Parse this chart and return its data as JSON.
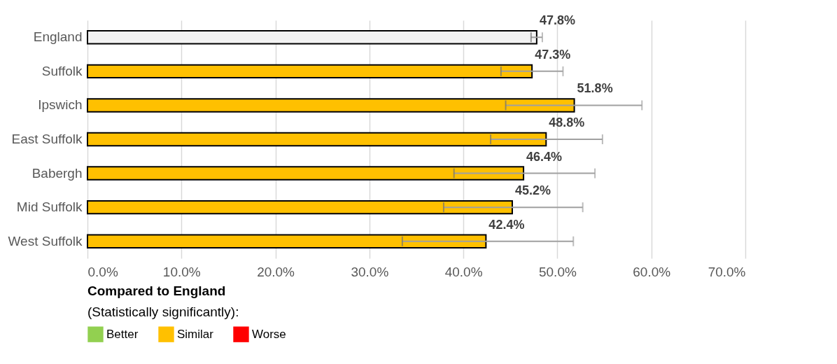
{
  "chart_data": {
    "type": "bar",
    "orientation": "horizontal",
    "categories": [
      "England",
      "Suffolk",
      "Ipswich",
      "East Suffolk",
      "Babergh",
      "Mid Suffolk",
      "West Suffolk"
    ],
    "series": [
      {
        "color": "#f2f2f2",
        "values": [
          47.8,
          null,
          null,
          null,
          null,
          null,
          null
        ],
        "errors": [
          [
            47.2,
            48.4
          ],
          null,
          null,
          null,
          null,
          null,
          null
        ],
        "value_labels": [
          "47.8%",
          null,
          null,
          null,
          null,
          null,
          null
        ]
      },
      {
        "name": "Better",
        "color": "#92d050",
        "values": [
          null,
          null,
          null,
          null,
          null,
          null,
          null
        ]
      },
      {
        "name": "Similar",
        "color": "#ffc000",
        "values": [
          null,
          47.3,
          51.8,
          48.8,
          46.4,
          45.2,
          42.4
        ],
        "errors": [
          null,
          [
            44.0,
            50.6
          ],
          [
            44.5,
            59.0
          ],
          [
            42.9,
            54.8
          ],
          [
            39.0,
            54.0
          ],
          [
            37.9,
            52.7
          ],
          [
            33.5,
            51.7
          ]
        ],
        "value_labels": [
          null,
          "47.3%",
          "51.8%",
          "48.8%",
          "46.4%",
          "45.2%",
          "42.4%"
        ]
      },
      {
        "name": "Worse",
        "color": "#ff0000",
        "values": [
          null,
          null,
          null,
          null,
          null,
          null,
          null
        ]
      }
    ],
    "xlim": [
      0,
      70
    ],
    "xticks": [
      {
        "value": 0,
        "label": "0.0%"
      },
      {
        "value": 10,
        "label": "10.0%"
      },
      {
        "value": 20,
        "label": "20.0%"
      },
      {
        "value": 30,
        "label": "30.0%"
      },
      {
        "value": 40,
        "label": "40.0%"
      },
      {
        "value": 50,
        "label": "50.0%"
      },
      {
        "value": 60,
        "label": "60.0%"
      },
      {
        "value": 70,
        "label": "70.0%"
      }
    ],
    "grid": "x",
    "legend": "bottom left",
    "legend_title": "Compared to England\n(Statistically significantly):"
  }
}
